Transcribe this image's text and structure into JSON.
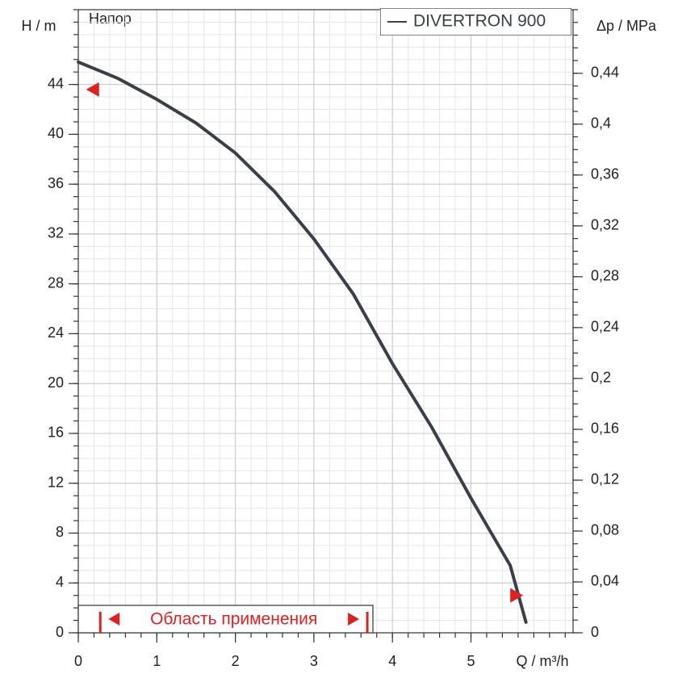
{
  "chart_data": {
    "type": "line",
    "inner_label": "Напор",
    "x_label": "Q / m³/h",
    "y_label": "H / m",
    "y2_label": "Δp / MPa",
    "range_label": "Область применения",
    "range": [
      0.28,
      3.68
    ],
    "x": [
      0,
      0.5,
      1,
      1.5,
      2,
      2.5,
      3,
      3.5,
      4,
      4.5,
      5,
      5.5,
      5.7
    ],
    "series": [
      {
        "name": "DIVERTRON 900",
        "color": "#3a4049",
        "values": [
          45.8,
          44.5,
          42.8,
          40.9,
          38.5,
          35.4,
          31.6,
          27.2,
          21.6,
          16.5,
          10.8,
          5.4,
          0.85
        ]
      }
    ],
    "markers": [
      {
        "x": 0.1,
        "y": 43.6,
        "direction": "left"
      },
      {
        "x": 5.5,
        "y": 3.0,
        "direction": "right"
      }
    ],
    "xlim": [
      0,
      6.3
    ],
    "xticks": [
      0,
      1,
      2,
      3,
      4,
      5
    ],
    "ylim": [
      0,
      50
    ],
    "yticks": [
      0,
      4,
      8,
      12,
      16,
      20,
      24,
      28,
      32,
      36,
      40,
      44
    ],
    "y2lim": [
      0,
      0.49
    ],
    "y2ticks": [
      0,
      {
        "value": 0.04,
        "label": "0,04"
      },
      {
        "value": 0.08,
        "label": "0,08"
      },
      {
        "value": 0.12,
        "label": "0,12"
      },
      {
        "value": 0.16,
        "label": "0,16"
      },
      {
        "value": 0.2,
        "label": "0,2"
      },
      {
        "value": 0.24,
        "label": "0,24"
      },
      {
        "value": 0.28,
        "label": "0,28"
      },
      {
        "value": 0.32,
        "label": "0,32"
      },
      {
        "value": 0.36,
        "label": "0,36"
      },
      {
        "value": 0.4,
        "label": "0,4"
      },
      {
        "value": 0.44,
        "label": "0,44"
      }
    ],
    "grid": true,
    "legend": "top-right"
  }
}
